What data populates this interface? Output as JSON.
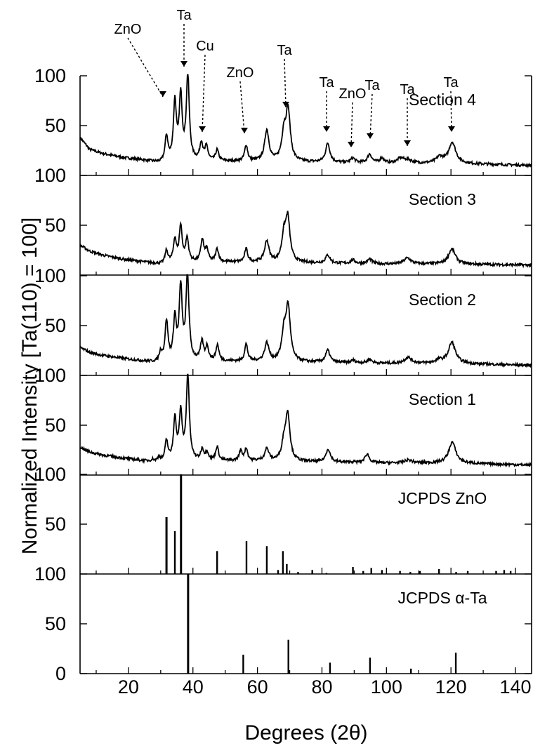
{
  "chart_data": {
    "type": "line",
    "xlabel": "Degrees (2θ)",
    "ylabel": "Normalized Intensity [Ta(110) = 100]",
    "xlim": [
      5,
      145
    ],
    "xticks": [
      "20",
      "40",
      "60",
      "80",
      "100",
      "120",
      "140"
    ],
    "ylim_per_panel": [
      0,
      100
    ],
    "shared_x_axis": true,
    "grid": false,
    "panels": [
      {
        "label": "Section 4",
        "type": "line",
        "background": {
          "x": [
            5,
            8,
            12,
            18,
            25,
            30,
            40,
            60,
            80,
            100,
            120,
            145
          ],
          "y": [
            38,
            26,
            22,
            18,
            15,
            12,
            14,
            14,
            13,
            12,
            12,
            10
          ]
        },
        "peaks": [
          {
            "x": 31.8,
            "y": 38
          },
          {
            "x": 34.4,
            "y": 72
          },
          {
            "x": 36.2,
            "y": 77
          },
          {
            "x": 38.4,
            "y": 100
          },
          {
            "x": 42.6,
            "y": 32
          },
          {
            "x": 44.2,
            "y": 28
          },
          {
            "x": 47.5,
            "y": 25
          },
          {
            "x": 56.5,
            "y": 30
          },
          {
            "x": 62.9,
            "y": 45
          },
          {
            "x": 68.2,
            "y": 40
          },
          {
            "x": 69.5,
            "y": 63
          },
          {
            "x": 81.8,
            "y": 32
          },
          {
            "x": 89.6,
            "y": 17
          },
          {
            "x": 94.8,
            "y": 21
          },
          {
            "x": 98.6,
            "y": 17
          },
          {
            "x": 104.4,
            "y": 17
          },
          {
            "x": 106.8,
            "y": 15
          },
          {
            "x": 116.5,
            "y": 18
          },
          {
            "x": 120.4,
            "y": 33
          }
        ],
        "annotations": [
          {
            "text": "Ta",
            "x": 38.4
          },
          {
            "text": "ZnO",
            "x": 34.4
          },
          {
            "text": "Cu",
            "x": 43.0
          },
          {
            "text": "ZnO",
            "x": 56.5
          },
          {
            "text": "Ta",
            "x": 69.5
          },
          {
            "text": "Ta",
            "x": 81.8
          },
          {
            "text": "ZnO",
            "x": 89.6
          },
          {
            "text": "Ta",
            "x": 94.8
          },
          {
            "text": "Ta",
            "x": 106.8
          },
          {
            "text": "Ta",
            "x": 120.4
          }
        ]
      },
      {
        "label": "Section 3",
        "type": "line",
        "background": {
          "x": [
            5,
            8,
            12,
            18,
            25,
            30,
            40,
            60,
            80,
            100,
            120,
            145
          ],
          "y": [
            30,
            24,
            20,
            16,
            13,
            11,
            13,
            13,
            12,
            11,
            11,
            10
          ]
        },
        "peaks": [
          {
            "x": 31.8,
            "y": 24
          },
          {
            "x": 34.4,
            "y": 35
          },
          {
            "x": 36.2,
            "y": 48
          },
          {
            "x": 38.2,
            "y": 36
          },
          {
            "x": 42.9,
            "y": 35
          },
          {
            "x": 44.3,
            "y": 25
          },
          {
            "x": 47.5,
            "y": 26
          },
          {
            "x": 56.5,
            "y": 26
          },
          {
            "x": 62.9,
            "y": 34
          },
          {
            "x": 68.2,
            "y": 37
          },
          {
            "x": 69.4,
            "y": 55
          },
          {
            "x": 81.8,
            "y": 20
          },
          {
            "x": 89.6,
            "y": 15
          },
          {
            "x": 94.8,
            "y": 16
          },
          {
            "x": 106.5,
            "y": 17
          },
          {
            "x": 120.3,
            "y": 26
          }
        ]
      },
      {
        "label": "Section 2",
        "type": "line",
        "background": {
          "x": [
            5,
            8,
            12,
            18,
            25,
            30,
            40,
            60,
            80,
            100,
            120,
            145
          ],
          "y": [
            28,
            23,
            20,
            17,
            14,
            12,
            14,
            14,
            13,
            12,
            12,
            10
          ]
        },
        "peaks": [
          {
            "x": 30.0,
            "y": 22
          },
          {
            "x": 31.8,
            "y": 53
          },
          {
            "x": 34.4,
            "y": 55
          },
          {
            "x": 36.2,
            "y": 86
          },
          {
            "x": 38.3,
            "y": 100
          },
          {
            "x": 42.8,
            "y": 33
          },
          {
            "x": 44.4,
            "y": 28
          },
          {
            "x": 47.6,
            "y": 30
          },
          {
            "x": 56.5,
            "y": 31
          },
          {
            "x": 62.9,
            "y": 32
          },
          {
            "x": 68.2,
            "y": 40
          },
          {
            "x": 69.5,
            "y": 67
          },
          {
            "x": 81.8,
            "y": 25
          },
          {
            "x": 89.7,
            "y": 15
          },
          {
            "x": 94.8,
            "y": 16
          },
          {
            "x": 106.7,
            "y": 18
          },
          {
            "x": 116.3,
            "y": 15
          },
          {
            "x": 120.3,
            "y": 33
          }
        ]
      },
      {
        "label": "Section 1",
        "type": "line",
        "background": {
          "x": [
            5,
            8,
            12,
            18,
            25,
            30,
            40,
            60,
            80,
            100,
            120,
            145
          ],
          "y": [
            28,
            23,
            20,
            17,
            14,
            12,
            14,
            14,
            13,
            12,
            12,
            10
          ]
        },
        "peaks": [
          {
            "x": 27.5,
            "y": 15
          },
          {
            "x": 29.5,
            "y": 17
          },
          {
            "x": 31.8,
            "y": 33
          },
          {
            "x": 34.4,
            "y": 55
          },
          {
            "x": 36.2,
            "y": 60
          },
          {
            "x": 38.4,
            "y": 100
          },
          {
            "x": 42.9,
            "y": 25
          },
          {
            "x": 44.4,
            "y": 22
          },
          {
            "x": 47.5,
            "y": 28
          },
          {
            "x": 54.8,
            "y": 24
          },
          {
            "x": 56.5,
            "y": 26
          },
          {
            "x": 62.9,
            "y": 26
          },
          {
            "x": 68.2,
            "y": 30
          },
          {
            "x": 69.4,
            "y": 60
          },
          {
            "x": 81.9,
            "y": 26
          },
          {
            "x": 89.6,
            "y": 13
          },
          {
            "x": 94.0,
            "y": 21
          },
          {
            "x": 106.8,
            "y": 15
          },
          {
            "x": 120.4,
            "y": 33
          }
        ]
      },
      {
        "label": "JCPDS ZnO",
        "type": "stick",
        "sticks": [
          {
            "x": 31.8,
            "y": 57
          },
          {
            "x": 34.4,
            "y": 43
          },
          {
            "x": 36.3,
            "y": 100
          },
          {
            "x": 47.5,
            "y": 23
          },
          {
            "x": 56.6,
            "y": 33
          },
          {
            "x": 62.9,
            "y": 28
          },
          {
            "x": 66.4,
            "y": 4
          },
          {
            "x": 67.9,
            "y": 23
          },
          {
            "x": 69.1,
            "y": 10
          },
          {
            "x": 72.6,
            "y": 2
          },
          {
            "x": 77.0,
            "y": 4
          },
          {
            "x": 81.4,
            "y": 1
          },
          {
            "x": 89.6,
            "y": 7
          },
          {
            "x": 92.8,
            "y": 3
          },
          {
            "x": 95.3,
            "y": 6
          },
          {
            "x": 98.6,
            "y": 4
          },
          {
            "x": 104.2,
            "y": 3
          },
          {
            "x": 107.4,
            "y": 2
          },
          {
            "x": 110.4,
            "y": 3
          },
          {
            "x": 116.3,
            "y": 5
          },
          {
            "x": 121.6,
            "y": 2
          },
          {
            "x": 125.2,
            "y": 3
          },
          {
            "x": 134.0,
            "y": 3
          },
          {
            "x": 136.5,
            "y": 4
          },
          {
            "x": 138.5,
            "y": 3
          }
        ]
      },
      {
        "label": "JCPDS α-Ta",
        "type": "stick",
        "sticks": [
          {
            "x": 38.5,
            "y": 100
          },
          {
            "x": 55.6,
            "y": 19
          },
          {
            "x": 69.6,
            "y": 34
          },
          {
            "x": 82.5,
            "y": 11
          },
          {
            "x": 94.9,
            "y": 16
          },
          {
            "x": 107.6,
            "y": 5
          },
          {
            "x": 121.5,
            "y": 21
          }
        ]
      }
    ]
  }
}
